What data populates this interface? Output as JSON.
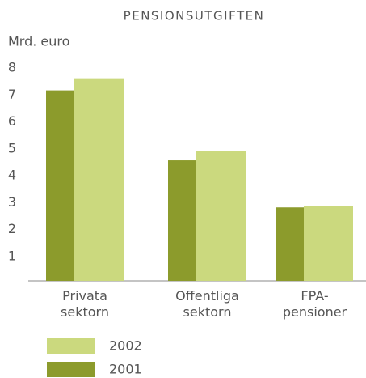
{
  "chart_data": {
    "type": "bar",
    "title": "PENSIONSUTGIFTEN",
    "y_label": "Mrd. euro",
    "categories": [
      "Privata\nsektorn",
      "Offentliga\nsektorn",
      "FPA-\npensioner"
    ],
    "series": [
      {
        "name": "2001",
        "color": "#8c9b2c",
        "values": [
          7.2,
          4.6,
          2.85
        ]
      },
      {
        "name": "2002",
        "color": "#cbd97e",
        "values": [
          7.65,
          4.95,
          2.9
        ]
      }
    ],
    "ylim": [
      0,
      8
    ],
    "yticks": [
      1,
      2,
      3,
      4,
      5,
      6,
      7,
      8
    ],
    "grid": false
  }
}
